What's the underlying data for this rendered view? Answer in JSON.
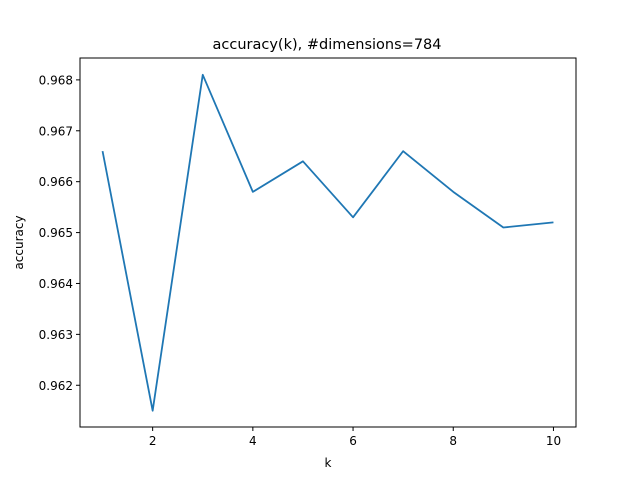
{
  "chart_data": {
    "type": "line",
    "title": "accuracy(k), #dimensions=784",
    "xlabel": "k",
    "ylabel": "accuracy",
    "x": [
      1,
      2,
      3,
      4,
      5,
      6,
      7,
      8,
      9,
      10
    ],
    "series": [
      {
        "values": [
          0.9666,
          0.9615,
          0.9681,
          0.9658,
          0.9664,
          0.9653,
          0.9666,
          0.9658,
          0.9651,
          0.9652
        ],
        "color": "#1f77b4"
      }
    ],
    "xlim": [
      0.55,
      10.45
    ],
    "ylim": [
      0.96118,
      0.96843
    ],
    "xticks": [
      2,
      4,
      6,
      8,
      10
    ],
    "xtick_labels": [
      "2",
      "4",
      "6",
      "8",
      "10"
    ],
    "yticks": [
      0.962,
      0.963,
      0.964,
      0.965,
      0.966,
      0.967,
      0.968
    ],
    "ytick_labels": [
      "0.962",
      "0.963",
      "0.964",
      "0.965",
      "0.966",
      "0.967",
      "0.968"
    ],
    "grid": false,
    "legend": "none"
  }
}
